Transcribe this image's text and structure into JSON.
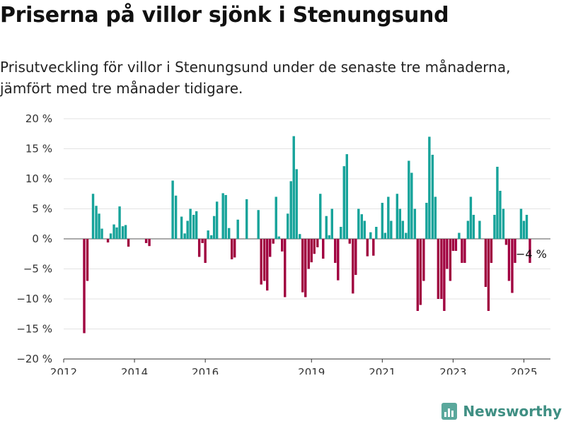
{
  "header": {
    "title": "Priserna på villor sjönk i Stenungsund",
    "subtitle": "Prisutveckling för villor i Stenungsund under de senaste tre månaderna, jämfört med tre månader tidigare."
  },
  "brand": {
    "name": "Newsworthy",
    "icon": "bar-chart-logo-icon"
  },
  "chart_data": {
    "type": "bar",
    "title": "",
    "xlabel": "",
    "ylabel": "",
    "ylim": [
      -20,
      20
    ],
    "yticks": [
      20,
      15,
      10,
      5,
      0,
      -5,
      -10,
      -15,
      -20
    ],
    "ytick_suffix": " %",
    "xlim": [
      2012.0,
      2025.75
    ],
    "xticks": [
      "2012",
      "2014",
      "2016",
      "2019",
      "2021",
      "2023",
      "2025"
    ],
    "grid": true,
    "colors": {
      "positive": "#16a39a",
      "negative": "#a0003f"
    },
    "last_value_label": "−4 %",
    "bar_width_years": 0.068,
    "series": [
      {
        "values": [
          {
            "x": 2012.58,
            "y": -15.7
          },
          {
            "x": 2012.67,
            "y": -7
          },
          {
            "x": 2012.83,
            "y": 7.5
          },
          {
            "x": 2012.92,
            "y": 5.5
          },
          {
            "x": 2013.0,
            "y": 4.2
          },
          {
            "x": 2013.08,
            "y": 1.7
          },
          {
            "x": 2013.25,
            "y": -0.6
          },
          {
            "x": 2013.33,
            "y": 0.9
          },
          {
            "x": 2013.42,
            "y": 2.4
          },
          {
            "x": 2013.5,
            "y": 1.9
          },
          {
            "x": 2013.58,
            "y": 5.4
          },
          {
            "x": 2013.67,
            "y": 2.1
          },
          {
            "x": 2013.75,
            "y": 2.3
          },
          {
            "x": 2013.83,
            "y": -1.3
          },
          {
            "x": 2014.33,
            "y": -0.7
          },
          {
            "x": 2014.42,
            "y": -1.2
          },
          {
            "x": 2015.08,
            "y": 9.7
          },
          {
            "x": 2015.17,
            "y": 7.2
          },
          {
            "x": 2015.33,
            "y": 3.7
          },
          {
            "x": 2015.42,
            "y": 0.9
          },
          {
            "x": 2015.5,
            "y": 3.0
          },
          {
            "x": 2015.58,
            "y": 5.0
          },
          {
            "x": 2015.67,
            "y": 4.0
          },
          {
            "x": 2015.75,
            "y": 4.6
          },
          {
            "x": 2015.83,
            "y": -3.0
          },
          {
            "x": 2015.92,
            "y": -0.7
          },
          {
            "x": 2016.0,
            "y": -4.0
          },
          {
            "x": 2016.08,
            "y": 1.4
          },
          {
            "x": 2016.17,
            "y": 0.6
          },
          {
            "x": 2016.25,
            "y": 3.8
          },
          {
            "x": 2016.33,
            "y": 6.2
          },
          {
            "x": 2016.5,
            "y": 7.6
          },
          {
            "x": 2016.58,
            "y": 7.3
          },
          {
            "x": 2016.67,
            "y": 1.8
          },
          {
            "x": 2016.75,
            "y": -3.4
          },
          {
            "x": 2016.83,
            "y": -3.1
          },
          {
            "x": 2016.92,
            "y": 3.2
          },
          {
            "x": 2017.17,
            "y": 6.6
          },
          {
            "x": 2017.5,
            "y": 4.8
          },
          {
            "x": 2017.58,
            "y": -7.6
          },
          {
            "x": 2017.67,
            "y": -7.0
          },
          {
            "x": 2017.75,
            "y": -8.6
          },
          {
            "x": 2017.83,
            "y": -3.0
          },
          {
            "x": 2017.92,
            "y": -0.8
          },
          {
            "x": 2018.0,
            "y": 7.0
          },
          {
            "x": 2018.08,
            "y": 0.4
          },
          {
            "x": 2018.17,
            "y": -2.1
          },
          {
            "x": 2018.25,
            "y": -9.7
          },
          {
            "x": 2018.33,
            "y": 4.2
          },
          {
            "x": 2018.42,
            "y": 9.6
          },
          {
            "x": 2018.5,
            "y": 17.1
          },
          {
            "x": 2018.58,
            "y": 11.6
          },
          {
            "x": 2018.67,
            "y": 0.8
          },
          {
            "x": 2018.75,
            "y": -8.9
          },
          {
            "x": 2018.83,
            "y": -9.7
          },
          {
            "x": 2018.92,
            "y": -5.0
          },
          {
            "x": 2019.0,
            "y": -3.9
          },
          {
            "x": 2019.08,
            "y": -2.5
          },
          {
            "x": 2019.17,
            "y": -1.4
          },
          {
            "x": 2019.25,
            "y": 7.5
          },
          {
            "x": 2019.33,
            "y": -3.3
          },
          {
            "x": 2019.42,
            "y": 3.8
          },
          {
            "x": 2019.5,
            "y": 0.6
          },
          {
            "x": 2019.58,
            "y": 5.0
          },
          {
            "x": 2019.67,
            "y": -4.0
          },
          {
            "x": 2019.75,
            "y": -6.9
          },
          {
            "x": 2019.83,
            "y": 2.0
          },
          {
            "x": 2019.92,
            "y": 12.1
          },
          {
            "x": 2020.0,
            "y": 14.1
          },
          {
            "x": 2020.08,
            "y": -0.8
          },
          {
            "x": 2020.17,
            "y": -9.1
          },
          {
            "x": 2020.25,
            "y": -6.0
          },
          {
            "x": 2020.33,
            "y": 5.0
          },
          {
            "x": 2020.42,
            "y": 4.1
          },
          {
            "x": 2020.5,
            "y": 3.0
          },
          {
            "x": 2020.58,
            "y": -2.9
          },
          {
            "x": 2020.67,
            "y": 1.1
          },
          {
            "x": 2020.75,
            "y": -2.8
          },
          {
            "x": 2020.83,
            "y": 2.0
          },
          {
            "x": 2021.0,
            "y": 6.0
          },
          {
            "x": 2021.08,
            "y": 1.0
          },
          {
            "x": 2021.17,
            "y": 7.0
          },
          {
            "x": 2021.25,
            "y": 3.0
          },
          {
            "x": 2021.42,
            "y": 7.5
          },
          {
            "x": 2021.5,
            "y": 5.0
          },
          {
            "x": 2021.58,
            "y": 3.0
          },
          {
            "x": 2021.67,
            "y": 1.0
          },
          {
            "x": 2021.75,
            "y": 13.0
          },
          {
            "x": 2021.83,
            "y": 11.0
          },
          {
            "x": 2021.92,
            "y": 5.0
          },
          {
            "x": 2022.0,
            "y": -12.0
          },
          {
            "x": 2022.08,
            "y": -11.0
          },
          {
            "x": 2022.17,
            "y": -7.0
          },
          {
            "x": 2022.25,
            "y": 6.0
          },
          {
            "x": 2022.33,
            "y": 17.0
          },
          {
            "x": 2022.42,
            "y": 14.0
          },
          {
            "x": 2022.5,
            "y": 7.0
          },
          {
            "x": 2022.58,
            "y": -10.0
          },
          {
            "x": 2022.67,
            "y": -10.0
          },
          {
            "x": 2022.75,
            "y": -12.0
          },
          {
            "x": 2022.83,
            "y": -5.0
          },
          {
            "x": 2022.92,
            "y": -7.0
          },
          {
            "x": 2023.0,
            "y": -2.0
          },
          {
            "x": 2023.08,
            "y": -2.0
          },
          {
            "x": 2023.17,
            "y": 1.0
          },
          {
            "x": 2023.25,
            "y": -4.0
          },
          {
            "x": 2023.33,
            "y": -4.0
          },
          {
            "x": 2023.42,
            "y": 3.0
          },
          {
            "x": 2023.5,
            "y": 7.0
          },
          {
            "x": 2023.58,
            "y": 4.0
          },
          {
            "x": 2023.75,
            "y": 3.0
          },
          {
            "x": 2023.92,
            "y": -8.0
          },
          {
            "x": 2024.0,
            "y": -12.0
          },
          {
            "x": 2024.08,
            "y": -4.0
          },
          {
            "x": 2024.17,
            "y": 4.0
          },
          {
            "x": 2024.25,
            "y": 12.0
          },
          {
            "x": 2024.33,
            "y": 8.0
          },
          {
            "x": 2024.42,
            "y": 5.0
          },
          {
            "x": 2024.5,
            "y": -1.0
          },
          {
            "x": 2024.58,
            "y": -7.0
          },
          {
            "x": 2024.67,
            "y": -9.0
          },
          {
            "x": 2024.75,
            "y": -4.0
          },
          {
            "x": 2024.92,
            "y": 5.0
          },
          {
            "x": 2025.0,
            "y": 3.0
          },
          {
            "x": 2025.08,
            "y": 4.0
          },
          {
            "x": 2025.17,
            "y": -4.0
          }
        ]
      }
    ]
  }
}
